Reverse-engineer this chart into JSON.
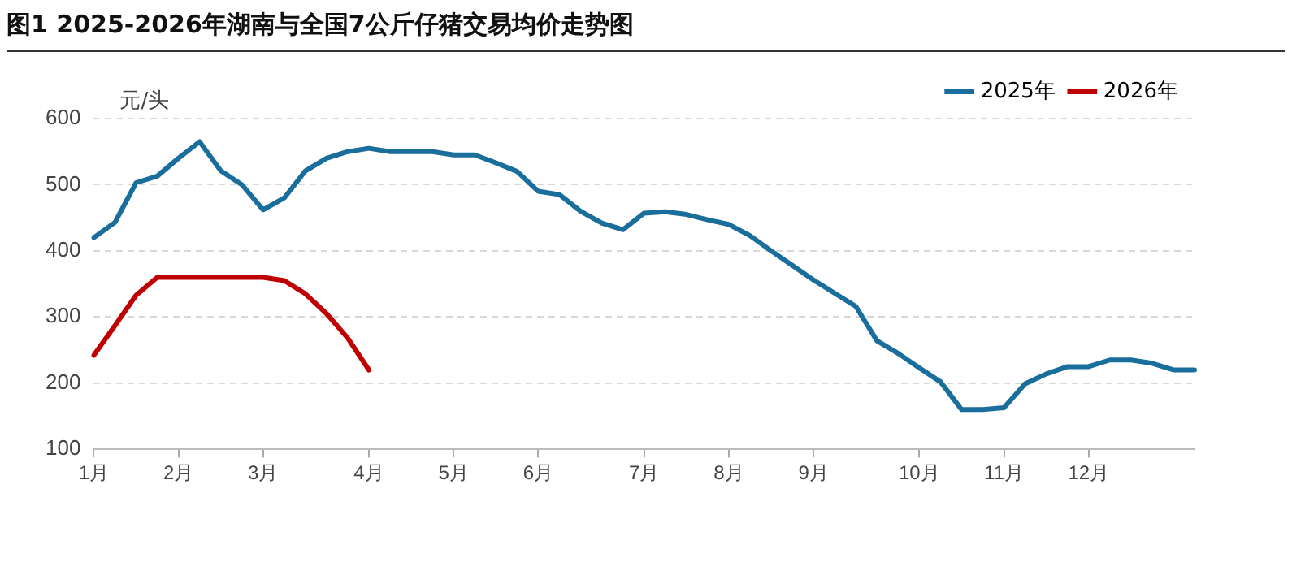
{
  "chart_data": {
    "type": "line",
    "title": "图1 2025-2026年湖南与全国7公斤仔猪交易均价走势图",
    "ylabel": "元/头",
    "categories": [
      "1月",
      null,
      null,
      null,
      "2月",
      null,
      null,
      null,
      "3月",
      null,
      null,
      null,
      null,
      "4月",
      null,
      null,
      null,
      "5月",
      null,
      null,
      null,
      "6月",
      null,
      null,
      null,
      null,
      "7月",
      null,
      null,
      null,
      "8月",
      null,
      null,
      null,
      "9月",
      null,
      null,
      null,
      null,
      "10月",
      null,
      null,
      null,
      "11月",
      null,
      null,
      null,
      "12月",
      null,
      null,
      null,
      null,
      null
    ],
    "series": [
      {
        "name": "2025年",
        "color": "#1a6e9c",
        "values": [
          420,
          443,
          503,
          513,
          540,
          565,
          521,
          500,
          462,
          480,
          521,
          540,
          550,
          555,
          550,
          550,
          550,
          545,
          545,
          533,
          520,
          490,
          485,
          460,
          442,
          432,
          457,
          459,
          455,
          447,
          440,
          423,
          400,
          378,
          356,
          336,
          316,
          264,
          245,
          223,
          202,
          160,
          160,
          163,
          199,
          214,
          225,
          225,
          235,
          235,
          230,
          220,
          220
        ]
      },
      {
        "name": "2026年",
        "color": "#c00000",
        "values": [
          242,
          287,
          333,
          360,
          360,
          360,
          360,
          360,
          360,
          355,
          335,
          305,
          268,
          220,
          null,
          null,
          null,
          null,
          null,
          null,
          null,
          null,
          null,
          null,
          null,
          null,
          null,
          null,
          null,
          null,
          null,
          null,
          null,
          null,
          null,
          null,
          null,
          null,
          null,
          null,
          null,
          null,
          null,
          null,
          null,
          null,
          null,
          null,
          null,
          null,
          null,
          null,
          null
        ]
      }
    ],
    "ylim": [
      100,
      600
    ],
    "yticks": [
      100,
      200,
      300,
      400,
      500,
      600
    ],
    "grid": "y",
    "legend": "top right",
    "marker": "none",
    "line_style": "solid"
  }
}
